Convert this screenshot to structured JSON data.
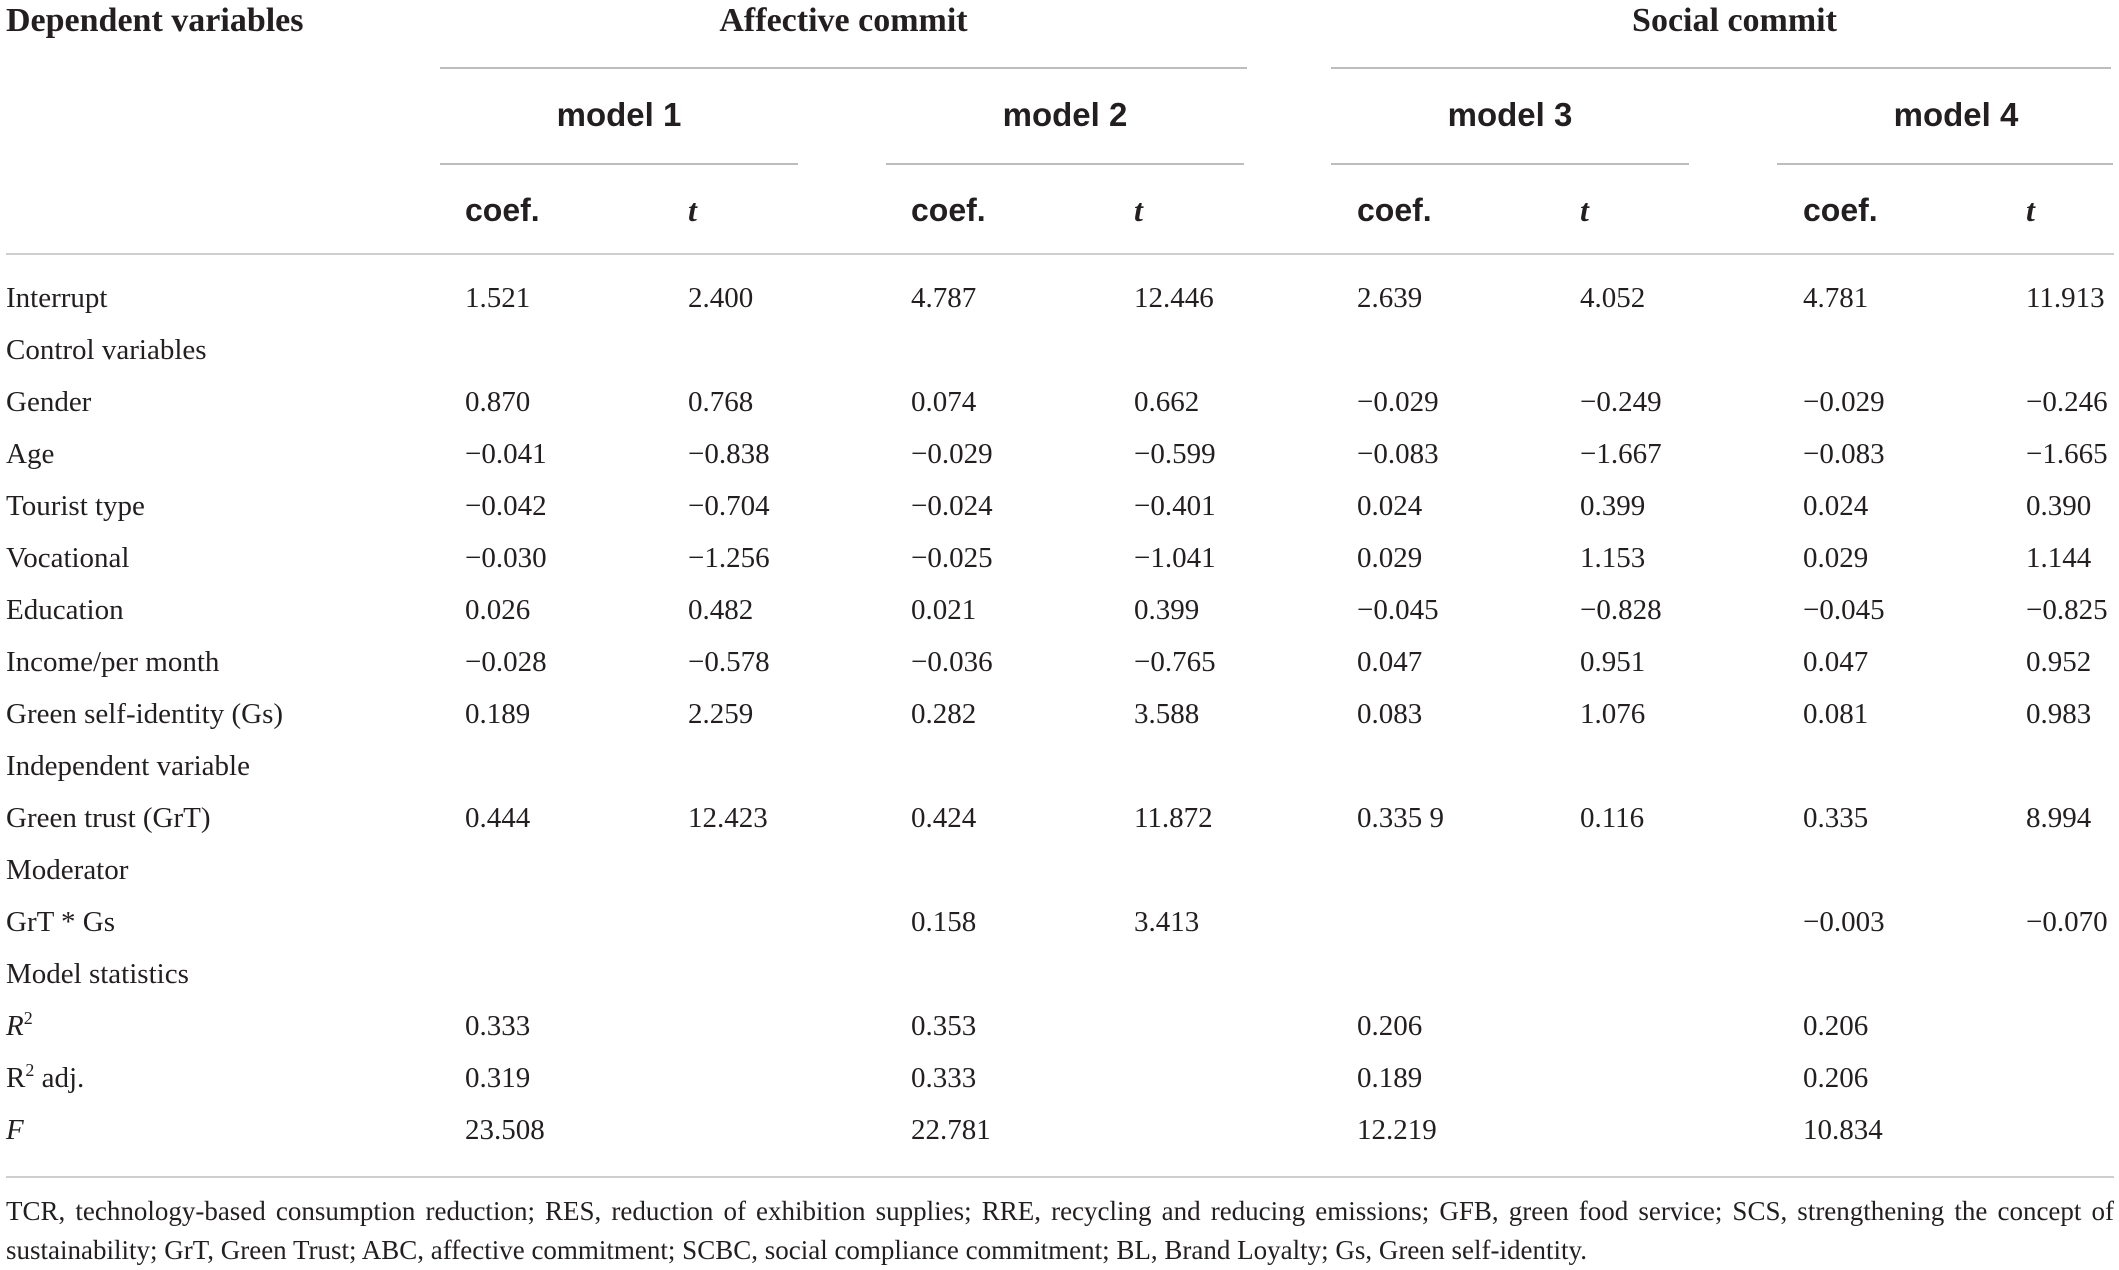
{
  "header": {
    "dependent_label": "Dependent variables",
    "group_1": "Affective commit",
    "group_2": "Social commit",
    "models": [
      "model 1",
      "model 2",
      "model 3",
      "model 4"
    ],
    "coef_label": "coef.",
    "t_label": "t"
  },
  "rows": [
    {
      "label": "Interrupt",
      "values": [
        "1.521",
        "2.400",
        "4.787",
        "12.446",
        "2.639",
        "4.052",
        "4.781",
        "11.913"
      ]
    },
    {
      "label": "Control variables",
      "values": [
        "",
        "",
        "",
        "",
        "",
        "",
        "",
        ""
      ]
    },
    {
      "label": "Gender",
      "values": [
        "0.870",
        "0.768",
        "0.074",
        "0.662",
        "−0.029",
        "−0.249",
        "−0.029",
        "−0.246"
      ]
    },
    {
      "label": "Age",
      "values": [
        "−0.041",
        "−0.838",
        "−0.029",
        "−0.599",
        "−0.083",
        "−1.667",
        "−0.083",
        "−1.665"
      ]
    },
    {
      "label": "Tourist type",
      "values": [
        "−0.042",
        "−0.704",
        "−0.024",
        "−0.401",
        "0.024",
        "0.399",
        "0.024",
        "0.390"
      ]
    },
    {
      "label": "Vocational",
      "values": [
        "−0.030",
        "−1.256",
        "−0.025",
        "−1.041",
        "0.029",
        "1.153",
        "0.029",
        "1.144"
      ]
    },
    {
      "label": "Education",
      "values": [
        "0.026",
        "0.482",
        "0.021",
        "0.399",
        "−0.045",
        "−0.828",
        "−0.045",
        "−0.825"
      ]
    },
    {
      "label": "Income/per month",
      "values": [
        "−0.028",
        "−0.578",
        "−0.036",
        "−0.765",
        "0.047",
        "0.951",
        "0.047",
        "0.952"
      ]
    },
    {
      "label": "Green self-identity (Gs)",
      "values": [
        "0.189",
        "2.259",
        "0.282",
        "3.588",
        "0.083",
        "1.076",
        "0.081",
        "0.983"
      ]
    },
    {
      "label": "Independent variable",
      "values": [
        "",
        "",
        "",
        "",
        "",
        "",
        "",
        ""
      ]
    },
    {
      "label": "Green trust (GrT)",
      "values": [
        "0.444",
        "12.423",
        "0.424",
        "11.872",
        "0.335 9",
        "0.116",
        "0.335",
        "8.994"
      ]
    },
    {
      "label": "Moderator",
      "values": [
        "",
        "",
        "",
        "",
        "",
        "",
        "",
        ""
      ]
    },
    {
      "label": "GrT * Gs",
      "values": [
        "",
        "",
        "0.158",
        "3.413",
        "",
        "",
        "−0.003",
        "−0.070"
      ]
    },
    {
      "label": "Model statistics",
      "values": [
        "",
        "",
        "",
        "",
        "",
        "",
        "",
        ""
      ]
    },
    {
      "label": "R",
      "label_sup": "2",
      "label_italic": true,
      "values": [
        "0.333",
        "",
        "0.353",
        "",
        "0.206",
        "",
        "0.206",
        ""
      ]
    },
    {
      "label": "R",
      "label_sup": "2",
      "label_suffix": " adj.",
      "values": [
        "0.319",
        "",
        "0.333",
        "",
        "0.189",
        "",
        "0.206",
        ""
      ]
    },
    {
      "label": "F",
      "label_italic": true,
      "values": [
        "23.508",
        "",
        "22.781",
        "",
        "12.219",
        "",
        "10.834",
        ""
      ]
    }
  ],
  "footnote": "TCR, technology-based consumption reduction; RES, reduction of exhibition supplies; RRE, recycling and reducing emissions; GFB, green food service; SCS, strengthening the concept of sustainability; GrT, Green Trust; ABC, affective commitment; SCBC, social compliance commitment; BL, Brand Loyalty; Gs, Green self-identity."
}
